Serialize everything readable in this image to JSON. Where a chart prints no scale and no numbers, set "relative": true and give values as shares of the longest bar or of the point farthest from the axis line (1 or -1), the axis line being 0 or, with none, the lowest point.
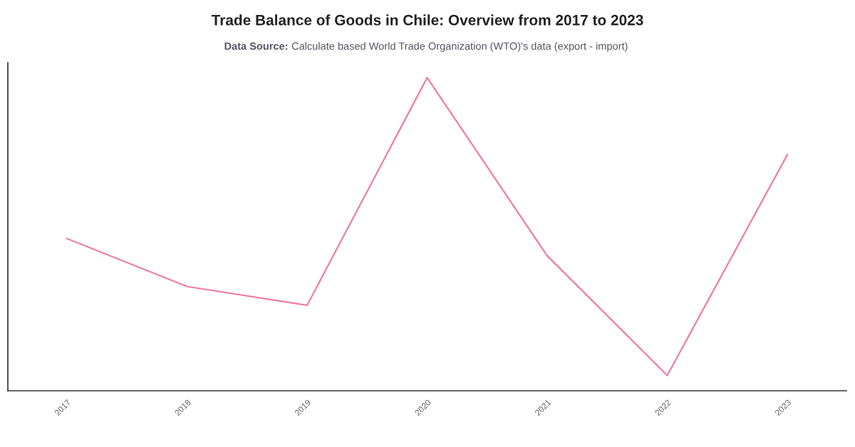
{
  "chart_data": {
    "type": "line",
    "title": "Trade Balance of Goods in Chile: Overview from 2017 to 2023",
    "annotations": [
      "Data Source: Calculate based World Trade Organization (WTO)'s data (export - import)"
    ],
    "categories": [
      "2017",
      "2018",
      "2019",
      "2020",
      "2021",
      "2022",
      "2023"
    ],
    "series": [
      {
        "color": "#f07ca6",
        "values": [
          0.486,
          0.333,
          0.273,
          1,
          0.431,
          0.049,
          0.754
        ]
      }
    ],
    "relative": true
  }
}
